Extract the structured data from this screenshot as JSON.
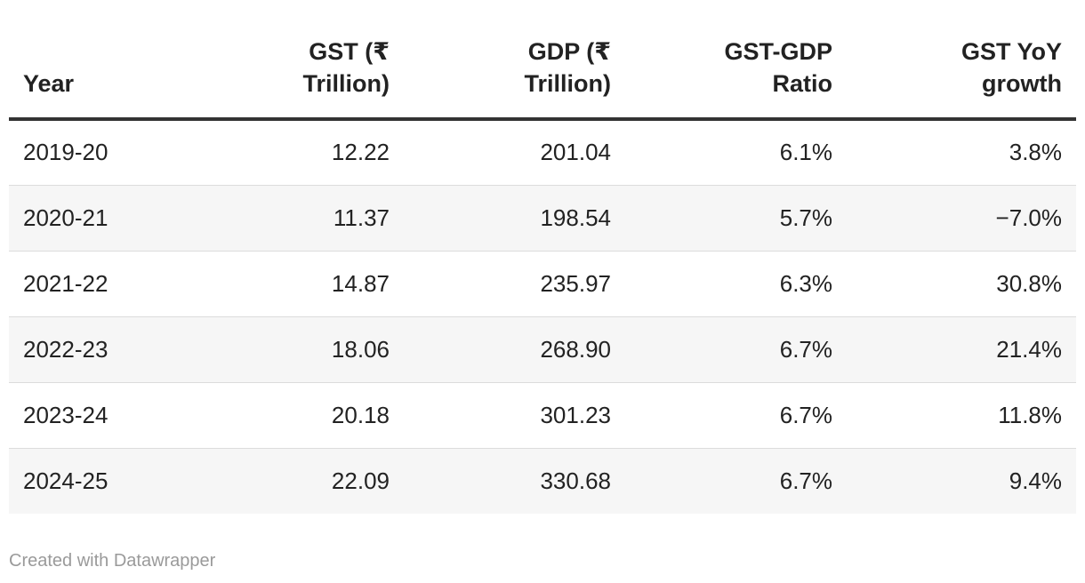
{
  "chart_data": {
    "type": "table",
    "columns": [
      "Year",
      "GST (₹ Trillion)",
      "GDP (₹ Trillion)",
      "GST-GDP Ratio",
      "GST YoY growth"
    ],
    "column_header_lines": [
      [
        "Year"
      ],
      [
        "GST (₹",
        "Trillion)"
      ],
      [
        "GDP (₹",
        "Trillion)"
      ],
      [
        "GST-GDP",
        "Ratio"
      ],
      [
        "GST YoY",
        "growth"
      ]
    ],
    "rows": [
      [
        "2019-20",
        "12.22",
        "201.04",
        "6.1%",
        "3.8%"
      ],
      [
        "2020-21",
        "11.37",
        "198.54",
        "5.7%",
        "−7.0%"
      ],
      [
        "2021-22",
        "14.87",
        "235.97",
        "6.3%",
        "30.8%"
      ],
      [
        "2022-23",
        "18.06",
        "268.90",
        "6.7%",
        "21.4%"
      ],
      [
        "2023-24",
        "20.18",
        "301.23",
        "6.7%",
        "11.8%"
      ],
      [
        "2024-25",
        "22.09",
        "330.68",
        "6.7%",
        "9.4%"
      ]
    ],
    "striped_rows": true
  },
  "footer": {
    "credit": "Created with Datawrapper"
  },
  "colors": {
    "text": "#222222",
    "header_rule": "#333333",
    "row_stripe": "#f6f6f6",
    "row_divider": "#dcdcdc",
    "footer_text": "#9a9a9a"
  }
}
